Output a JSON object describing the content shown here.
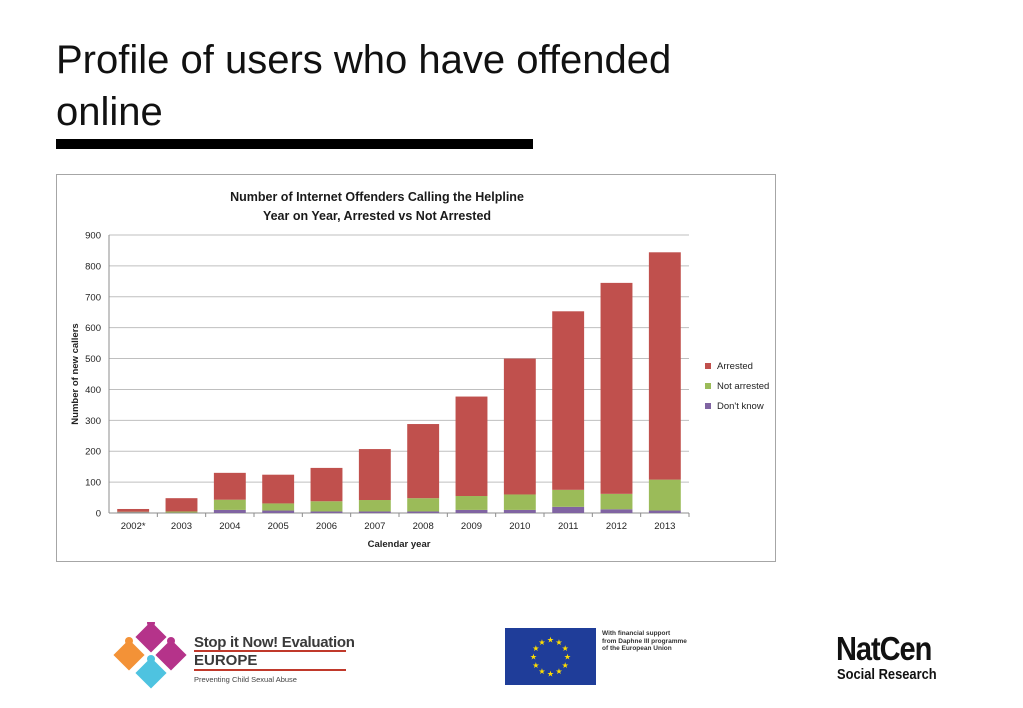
{
  "slide": {
    "title": "Profile of users who have offended online"
  },
  "chart_data": {
    "type": "bar",
    "stacked": true,
    "title_line1": "Number of Internet Offenders Calling the Helpline",
    "title_line2": "Year on Year, Arrested vs Not Arrested",
    "xlabel": "Calendar year",
    "ylabel": "Number of new callers",
    "ylim": [
      0,
      900
    ],
    "yticks": [
      0,
      100,
      200,
      300,
      400,
      500,
      600,
      700,
      800,
      900
    ],
    "grid": true,
    "legend_position": "right",
    "categories": [
      "2002*",
      "2003",
      "2004",
      "2005",
      "2006",
      "2007",
      "2008",
      "2009",
      "2010",
      "2011",
      "2012",
      "2013"
    ],
    "series": [
      {
        "name": "Don't know",
        "color": "#8064a2",
        "values": [
          2,
          1,
          10,
          8,
          5,
          5,
          5,
          10,
          10,
          20,
          12,
          8
        ]
      },
      {
        "name": "Not arrested",
        "color": "#9bbb59",
        "values": [
          2,
          4,
          33,
          23,
          33,
          37,
          43,
          45,
          50,
          55,
          50,
          100
        ]
      },
      {
        "name": "Arrested",
        "color": "#c0504d",
        "values": [
          9,
          43,
          87,
          93,
          108,
          165,
          240,
          322,
          440,
          578,
          683,
          736
        ]
      }
    ],
    "legend_order": [
      "Arrested",
      "Not arrested",
      "Don't know"
    ]
  },
  "logos": {
    "stop_it_now": {
      "title": "Stop it Now! Evaluation",
      "subtitle": "EUROPE",
      "tagline": "Preventing Child Sexual Abuse",
      "colors": [
        "#f39237",
        "#b5338a",
        "#4ec3e0"
      ]
    },
    "eu": {
      "text_line1": "With financial support",
      "text_line2": "from Daphne III programme",
      "text_line3": "of the European Union",
      "flag_color": "#1f3d99",
      "star_color": "#ffdd00"
    },
    "natcen": {
      "main": "NatCen",
      "sub": "Social Research"
    }
  }
}
